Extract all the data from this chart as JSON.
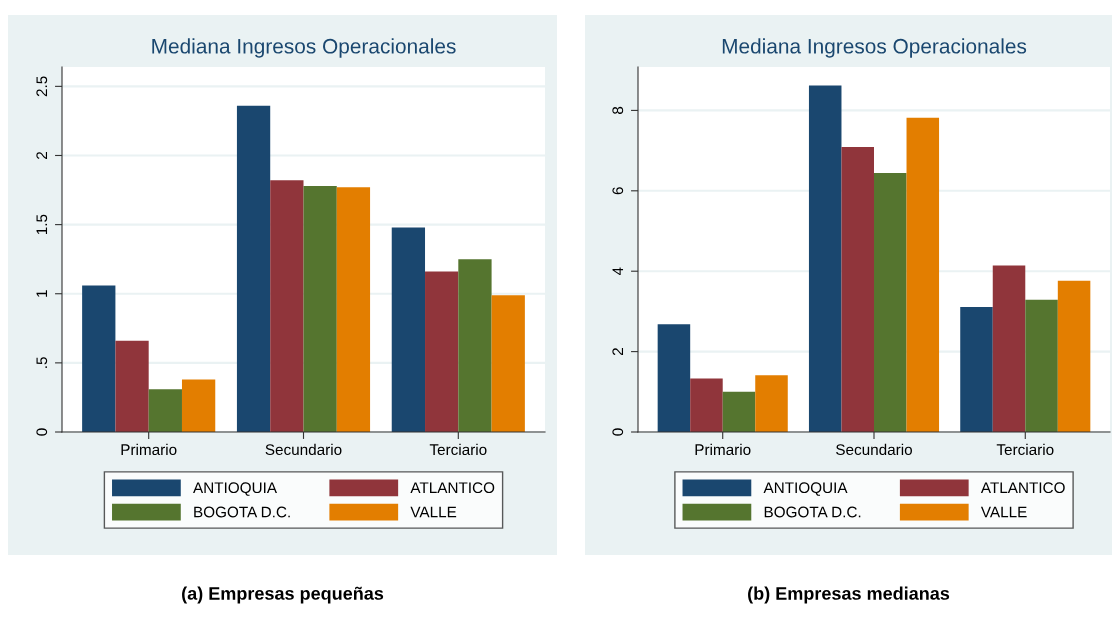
{
  "chart_data": [
    {
      "type": "bar",
      "title": "Mediana Ingresos Operacionales",
      "categories": [
        "Primario",
        "Secundario",
        "Terciario"
      ],
      "series": [
        {
          "name": "ANTIOQUIA",
          "color": "#1a476f",
          "values": [
            1.06,
            2.36,
            1.48
          ]
        },
        {
          "name": "ATLANTICO",
          "color": "#90353b",
          "values": [
            0.66,
            1.82,
            1.16
          ]
        },
        {
          "name": "BOGOTA D.C.",
          "color": "#55752f",
          "values": [
            0.31,
            1.78,
            1.25
          ]
        },
        {
          "name": "VALLE",
          "color": "#e37e00",
          "values": [
            0.38,
            1.77,
            0.99
          ]
        }
      ],
      "ylim": [
        0,
        2.64
      ],
      "yticks": [
        0,
        {
          "value": 0.5,
          "label": ".5"
        },
        1,
        1.5,
        2,
        2.5
      ],
      "grid": "y",
      "legend": "bottom",
      "annotations": [
        "(a) Empresas pequeñas"
      ]
    },
    {
      "type": "bar",
      "title": "Mediana Ingresos Operacionales",
      "categories": [
        "Primario",
        "Secundario",
        "Terciario"
      ],
      "series": [
        {
          "name": "ANTIOQUIA",
          "color": "#1a476f",
          "values": [
            2.68,
            8.62,
            3.11
          ]
        },
        {
          "name": "ATLANTICO",
          "color": "#90353b",
          "values": [
            1.33,
            7.09,
            4.14
          ]
        },
        {
          "name": "BOGOTA D.C.",
          "color": "#55752f",
          "values": [
            1.0,
            6.44,
            3.29
          ]
        },
        {
          "name": "VALLE",
          "color": "#e37e00",
          "values": [
            1.41,
            7.82,
            3.76
          ]
        }
      ],
      "ylim": [
        0,
        9.08
      ],
      "yticks": [
        0,
        2,
        4,
        6,
        8
      ],
      "grid": "y",
      "legend": "bottom",
      "annotations": [
        "(b) Empresas medianas"
      ]
    }
  ]
}
